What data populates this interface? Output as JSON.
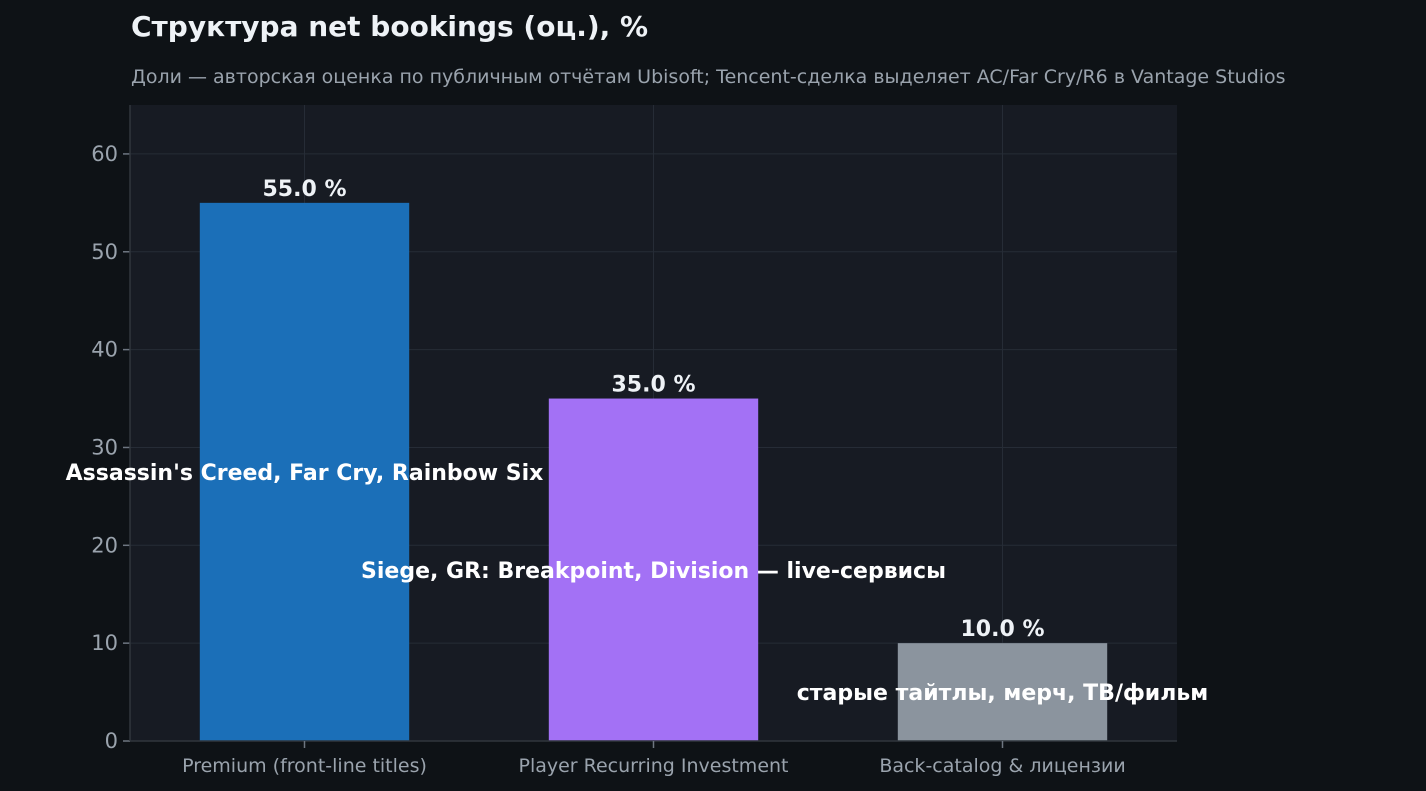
{
  "chart_data": {
    "type": "bar",
    "title": "Структура net bookings (оц.), %",
    "subtitle": "Доли — авторская оценка по публичным отчётам Ubisoft; Tencent-сделка выделяет AC/Far Cry/R6 в Vantage Studios",
    "xlabel": "",
    "ylabel": "",
    "categories": [
      "Premium (front-line titles)",
      "Player Recurring Investment",
      "Back-catalog & лицензии"
    ],
    "values": [
      55.0,
      35.0,
      10.0
    ],
    "value_labels": [
      "55.0 %",
      "35.0 %",
      "10.0 %"
    ],
    "annotations": [
      {
        "text": "Assassin's Creed, Far Cry, Rainbow Six",
        "category": 0,
        "y": 27.5
      },
      {
        "text": "Siege, GR: Breakpoint, Division — live-сервисы",
        "category": 1,
        "y": 17.5
      },
      {
        "text": "старые тайтлы, мерч, ТВ/фильм",
        "category": 2,
        "y": 5.0
      }
    ],
    "colors": [
      "#1b6fb8",
      "#a371f5",
      "#8b949e"
    ],
    "ylim": [
      0,
      65
    ],
    "yticks": [
      0,
      10,
      20,
      30,
      40,
      50,
      60
    ],
    "grid": true,
    "legend": "none"
  }
}
